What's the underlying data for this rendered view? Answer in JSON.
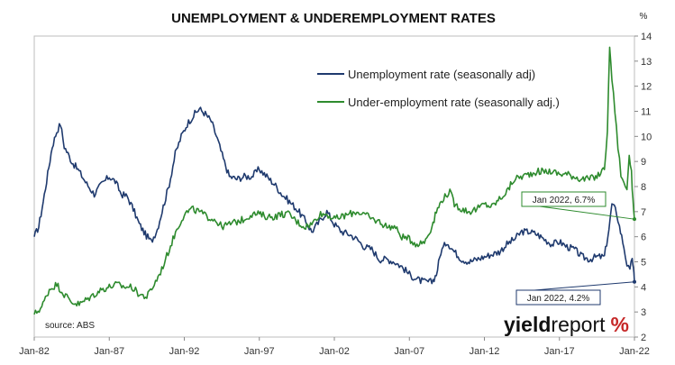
{
  "chart_data": {
    "type": "line",
    "title": "UNEMPLOYMENT & UNDEREMPLOYMENT RATES",
    "y_unit": "%",
    "ylim": [
      2,
      14
    ],
    "y_ticks": [
      2,
      3,
      4,
      5,
      6,
      7,
      8,
      9,
      10,
      11,
      12,
      13,
      14
    ],
    "y_axis_side": "right",
    "xlim": [
      1982.0,
      2022.0
    ],
    "x_ticks": [
      {
        "label": "Jan-82",
        "value": 1982.0
      },
      {
        "label": "Jan-87",
        "value": 1987.0
      },
      {
        "label": "Jan-92",
        "value": 1992.0
      },
      {
        "label": "Jan-97",
        "value": 1997.0
      },
      {
        "label": "Jan-02",
        "value": 2002.0
      },
      {
        "label": "Jan-07",
        "value": 2007.0
      },
      {
        "label": "Jan-12",
        "value": 2012.0
      },
      {
        "label": "Jan-17",
        "value": 2017.0
      },
      {
        "label": "Jan-22",
        "value": 2022.0
      }
    ],
    "grid": false,
    "legend_position": "top-center",
    "source": "source: ABS",
    "brand": {
      "part1": "yield",
      "part2": "report",
      "symbol": "%"
    },
    "series": [
      {
        "name": "Unemployment rate (seasonally adj)",
        "color": "#1f3a6e",
        "points": [
          [
            1982.0,
            6.0
          ],
          [
            1982.3,
            6.4
          ],
          [
            1982.6,
            7.4
          ],
          [
            1982.9,
            8.5
          ],
          [
            1983.2,
            9.6
          ],
          [
            1983.5,
            10.2
          ],
          [
            1983.75,
            10.5
          ],
          [
            1984.0,
            9.6
          ],
          [
            1984.5,
            9.0
          ],
          [
            1985.0,
            8.6
          ],
          [
            1985.5,
            8.1
          ],
          [
            1986.0,
            7.7
          ],
          [
            1986.5,
            8.1
          ],
          [
            1987.0,
            8.4
          ],
          [
            1987.4,
            8.2
          ],
          [
            1987.8,
            7.7
          ],
          [
            1988.2,
            7.6
          ],
          [
            1988.6,
            7.1
          ],
          [
            1989.0,
            6.5
          ],
          [
            1989.4,
            6.1
          ],
          [
            1989.8,
            5.8
          ],
          [
            1990.2,
            6.3
          ],
          [
            1990.6,
            7.2
          ],
          [
            1991.0,
            8.1
          ],
          [
            1991.4,
            9.3
          ],
          [
            1991.8,
            10.0
          ],
          [
            1992.2,
            10.5
          ],
          [
            1992.7,
            10.9
          ],
          [
            1993.0,
            11.1
          ],
          [
            1993.4,
            10.9
          ],
          [
            1993.8,
            10.6
          ],
          [
            1994.2,
            9.9
          ],
          [
            1994.6,
            9.1
          ],
          [
            1995.0,
            8.4
          ],
          [
            1995.5,
            8.3
          ],
          [
            1996.0,
            8.4
          ],
          [
            1996.5,
            8.4
          ],
          [
            1997.0,
            8.7
          ],
          [
            1997.5,
            8.4
          ],
          [
            1998.0,
            8.1
          ],
          [
            1998.5,
            7.7
          ],
          [
            1999.0,
            7.4
          ],
          [
            1999.5,
            7.1
          ],
          [
            2000.0,
            6.7
          ],
          [
            2000.5,
            6.2
          ],
          [
            2001.0,
            6.6
          ],
          [
            2001.5,
            7.0
          ],
          [
            2002.0,
            6.5
          ],
          [
            2002.5,
            6.2
          ],
          [
            2003.0,
            6.1
          ],
          [
            2003.5,
            5.9
          ],
          [
            2004.0,
            5.6
          ],
          [
            2004.5,
            5.5
          ],
          [
            2005.0,
            5.1
          ],
          [
            2005.5,
            5.1
          ],
          [
            2006.0,
            5.0
          ],
          [
            2006.5,
            4.8
          ],
          [
            2007.0,
            4.5
          ],
          [
            2007.5,
            4.3
          ],
          [
            2008.0,
            4.2
          ],
          [
            2008.5,
            4.2
          ],
          [
            2008.8,
            4.5
          ],
          [
            2009.1,
            5.4
          ],
          [
            2009.5,
            5.8
          ],
          [
            2010.0,
            5.4
          ],
          [
            2010.5,
            5.1
          ],
          [
            2011.0,
            5.0
          ],
          [
            2011.5,
            5.1
          ],
          [
            2012.0,
            5.2
          ],
          [
            2012.5,
            5.3
          ],
          [
            2013.0,
            5.4
          ],
          [
            2013.5,
            5.7
          ],
          [
            2014.0,
            5.9
          ],
          [
            2014.5,
            6.2
          ],
          [
            2015.0,
            6.2
          ],
          [
            2015.5,
            6.1
          ],
          [
            2016.0,
            5.9
          ],
          [
            2016.5,
            5.7
          ],
          [
            2017.0,
            5.8
          ],
          [
            2017.5,
            5.6
          ],
          [
            2018.0,
            5.5
          ],
          [
            2018.5,
            5.2
          ],
          [
            2019.0,
            5.1
          ],
          [
            2019.5,
            5.2
          ],
          [
            2020.0,
            5.2
          ],
          [
            2020.3,
            6.3
          ],
          [
            2020.5,
            7.3
          ],
          [
            2020.8,
            7.0
          ],
          [
            2021.0,
            6.4
          ],
          [
            2021.3,
            5.6
          ],
          [
            2021.5,
            4.9
          ],
          [
            2021.7,
            4.6
          ],
          [
            2021.85,
            5.2
          ],
          [
            2021.93,
            4.7
          ],
          [
            2022.0,
            4.2
          ]
        ],
        "annotation": {
          "label": "Jan 2022, 4.2%",
          "x": 2022.0,
          "y": 4.2
        }
      },
      {
        "name": "Under-employment rate (seasonally adj.)",
        "color": "#2e8b2e",
        "points": [
          [
            1982.0,
            2.9
          ],
          [
            1982.5,
            3.2
          ],
          [
            1983.0,
            3.9
          ],
          [
            1983.5,
            4.1
          ],
          [
            1984.0,
            3.7
          ],
          [
            1984.5,
            3.4
          ],
          [
            1985.0,
            3.3
          ],
          [
            1985.5,
            3.5
          ],
          [
            1986.0,
            3.7
          ],
          [
            1986.5,
            3.9
          ],
          [
            1987.0,
            4.0
          ],
          [
            1987.5,
            4.1
          ],
          [
            1988.0,
            4.0
          ],
          [
            1988.5,
            4.0
          ],
          [
            1989.0,
            3.7
          ],
          [
            1989.5,
            3.6
          ],
          [
            1990.0,
            4.1
          ],
          [
            1990.5,
            4.7
          ],
          [
            1991.0,
            5.5
          ],
          [
            1991.5,
            6.3
          ],
          [
            1992.0,
            6.9
          ],
          [
            1992.5,
            7.1
          ],
          [
            1993.0,
            7.0
          ],
          [
            1993.5,
            6.8
          ],
          [
            1994.0,
            6.7
          ],
          [
            1994.5,
            6.4
          ],
          [
            1995.0,
            6.5
          ],
          [
            1995.5,
            6.6
          ],
          [
            1996.0,
            6.7
          ],
          [
            1996.5,
            6.9
          ],
          [
            1997.0,
            6.9
          ],
          [
            1997.5,
            6.8
          ],
          [
            1998.0,
            6.8
          ],
          [
            1998.5,
            6.9
          ],
          [
            1999.0,
            6.9
          ],
          [
            1999.5,
            6.6
          ],
          [
            2000.0,
            6.4
          ],
          [
            2000.5,
            6.5
          ],
          [
            2001.0,
            6.9
          ],
          [
            2001.5,
            6.9
          ],
          [
            2002.0,
            6.7
          ],
          [
            2002.5,
            6.8
          ],
          [
            2003.0,
            6.9
          ],
          [
            2003.5,
            7.0
          ],
          [
            2004.0,
            6.9
          ],
          [
            2004.5,
            6.7
          ],
          [
            2005.0,
            6.6
          ],
          [
            2005.5,
            6.4
          ],
          [
            2006.0,
            6.4
          ],
          [
            2006.5,
            6.0
          ],
          [
            2007.0,
            5.9
          ],
          [
            2007.5,
            5.7
          ],
          [
            2008.0,
            5.8
          ],
          [
            2008.5,
            6.4
          ],
          [
            2008.8,
            7.0
          ],
          [
            2009.2,
            7.5
          ],
          [
            2009.7,
            7.8
          ],
          [
            2010.0,
            7.3
          ],
          [
            2010.5,
            7.1
          ],
          [
            2011.0,
            7.0
          ],
          [
            2011.5,
            7.1
          ],
          [
            2012.0,
            7.3
          ],
          [
            2012.5,
            7.2
          ],
          [
            2013.0,
            7.5
          ],
          [
            2013.5,
            7.8
          ],
          [
            2014.0,
            8.3
          ],
          [
            2014.5,
            8.4
          ],
          [
            2015.0,
            8.5
          ],
          [
            2015.5,
            8.6
          ],
          [
            2016.0,
            8.6
          ],
          [
            2016.5,
            8.6
          ],
          [
            2017.0,
            8.5
          ],
          [
            2017.5,
            8.5
          ],
          [
            2018.0,
            8.4
          ],
          [
            2018.5,
            8.3
          ],
          [
            2019.0,
            8.3
          ],
          [
            2019.5,
            8.4
          ],
          [
            2020.0,
            8.7
          ],
          [
            2020.2,
            10.3
          ],
          [
            2020.35,
            13.6
          ],
          [
            2020.5,
            12.3
          ],
          [
            2020.7,
            11.0
          ],
          [
            2020.9,
            9.6
          ],
          [
            2021.1,
            8.5
          ],
          [
            2021.3,
            8.1
          ],
          [
            2021.5,
            7.9
          ],
          [
            2021.65,
            9.3
          ],
          [
            2021.8,
            8.5
          ],
          [
            2021.9,
            7.5
          ],
          [
            2022.0,
            6.7
          ]
        ],
        "annotation": {
          "label": "Jan 2022, 6.7%",
          "x": 2022.0,
          "y": 6.7
        }
      }
    ]
  }
}
